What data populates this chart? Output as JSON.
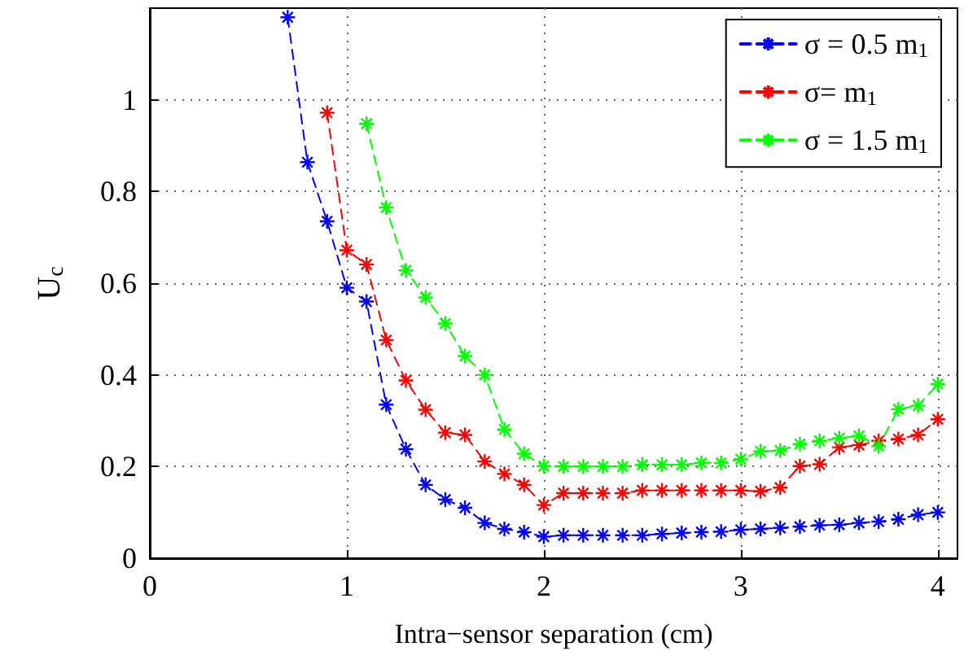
{
  "chart_data": {
    "type": "line",
    "xlabel": "Intra−sensor separation (cm)",
    "ylabel": "U$_{c}$",
    "xlim": [
      0,
      4.1
    ],
    "ylim": [
      0,
      1.2
    ],
    "xticks": [
      0,
      1,
      2,
      3,
      4
    ],
    "yticks": [
      0,
      0.2,
      0.4,
      0.6,
      0.8,
      1
    ],
    "grid": true,
    "legend": "top right",
    "marker": "cross",
    "line_style": "dashed",
    "series": [
      {
        "name": "σ = 0.5 m$_{1}$",
        "color": "#0000ff",
        "x": [
          0.7,
          0.8,
          0.9,
          1.0,
          1.1,
          1.2,
          1.3,
          1.4,
          1.5,
          1.6,
          1.7,
          1.8,
          1.9,
          2.0,
          2.1,
          2.2,
          2.3,
          2.4,
          2.5,
          2.6,
          2.7,
          2.8,
          2.9,
          3.0,
          3.1,
          3.2,
          3.3,
          3.4,
          3.5,
          3.6,
          3.7,
          3.8,
          3.9,
          4.0
        ],
        "values": [
          1.18,
          0.864,
          0.735,
          0.59,
          0.56,
          0.335,
          0.238,
          0.16,
          0.128,
          0.11,
          0.077,
          0.064,
          0.057,
          0.047,
          0.05,
          0.05,
          0.05,
          0.05,
          0.05,
          0.053,
          0.055,
          0.057,
          0.058,
          0.062,
          0.064,
          0.066,
          0.069,
          0.072,
          0.073,
          0.077,
          0.08,
          0.085,
          0.095,
          0.1
        ]
      },
      {
        "name": "σ= m$_{1}$",
        "color": "#ff0000",
        "x": [
          0.9,
          1.0,
          1.1,
          1.2,
          1.3,
          1.4,
          1.5,
          1.6,
          1.7,
          1.8,
          1.9,
          2.0,
          2.1,
          2.2,
          2.3,
          2.4,
          2.5,
          2.6,
          2.7,
          2.8,
          2.9,
          3.0,
          3.1,
          3.2,
          3.3,
          3.4,
          3.5,
          3.6,
          3.7,
          3.8,
          3.9,
          4.0
        ],
        "values": [
          0.972,
          0.672,
          0.641,
          0.476,
          0.388,
          0.324,
          0.274,
          0.269,
          0.211,
          0.184,
          0.16,
          0.116,
          0.142,
          0.142,
          0.142,
          0.142,
          0.148,
          0.148,
          0.148,
          0.148,
          0.148,
          0.148,
          0.146,
          0.154,
          0.201,
          0.205,
          0.242,
          0.247,
          0.256,
          0.26,
          0.269,
          0.303
        ]
      },
      {
        "name": "σ = 1.5 m$_{1}$",
        "color": "#00ff00",
        "x": [
          1.1,
          1.2,
          1.3,
          1.4,
          1.5,
          1.6,
          1.7,
          1.8,
          1.9,
          2.0,
          2.1,
          2.2,
          2.3,
          2.4,
          2.5,
          2.6,
          2.7,
          2.8,
          2.9,
          3.0,
          3.1,
          3.2,
          3.3,
          3.4,
          3.5,
          3.6,
          3.7,
          3.8,
          3.9,
          4.0
        ],
        "values": [
          0.948,
          0.765,
          0.628,
          0.569,
          0.512,
          0.441,
          0.4,
          0.281,
          0.228,
          0.201,
          0.2,
          0.2,
          0.2,
          0.2,
          0.204,
          0.204,
          0.204,
          0.208,
          0.208,
          0.216,
          0.233,
          0.235,
          0.249,
          0.256,
          0.262,
          0.267,
          0.245,
          0.325,
          0.333,
          0.38
        ]
      }
    ]
  }
}
